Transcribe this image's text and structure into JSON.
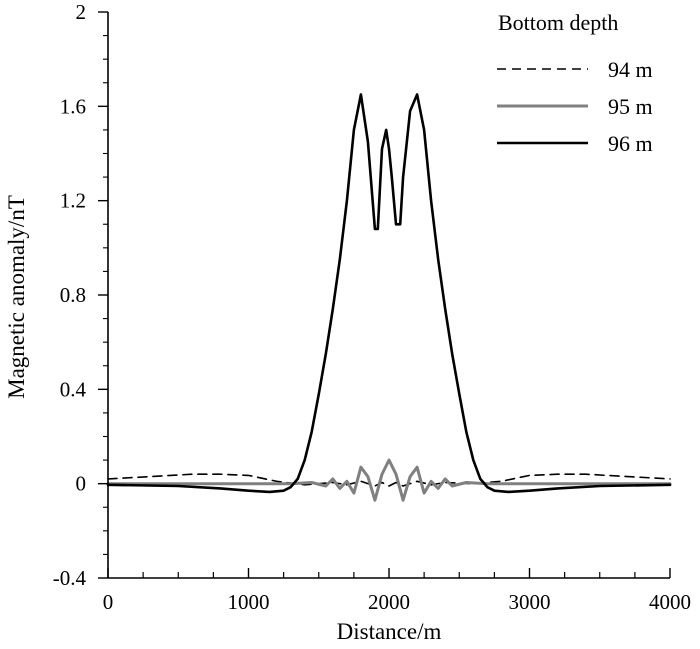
{
  "chart_data": {
    "type": "line",
    "xlabel": "Distance/m",
    "ylabel": "Magnetic anomaly/nT",
    "xlim": [
      0,
      4000
    ],
    "ylim": [
      -0.4,
      2
    ],
    "xticks": [
      "0",
      "1000",
      "2000",
      "3000",
      "4000"
    ],
    "yticks": [
      "-0.4",
      "0",
      "0.4",
      "0.8",
      "1.2",
      "1.6",
      "2"
    ],
    "grid": false,
    "legend": {
      "title": "Bottom depth",
      "placement": "top-right"
    },
    "series": [
      {
        "name": "94 m",
        "color": "#000000",
        "dash": "dashed",
        "x": [
          0,
          300,
          600,
          800,
          1000,
          1200,
          1400,
          1600,
          1700,
          1800,
          1900,
          1950,
          2000,
          2050,
          2100,
          2200,
          2300,
          2400,
          2600,
          2800,
          3000,
          3200,
          3400,
          3700,
          4000
        ],
        "y": [
          0.02,
          0.03,
          0.04,
          0.04,
          0.035,
          0.01,
          -0.005,
          0.005,
          -0.005,
          0.01,
          -0.01,
          0.005,
          -0.01,
          0.005,
          -0.01,
          0.01,
          -0.005,
          0.005,
          0.0,
          0.01,
          0.035,
          0.04,
          0.04,
          0.03,
          0.02
        ]
      },
      {
        "name": "95 m",
        "color": "#808080",
        "dash": "solid",
        "x": [
          0,
          500,
          1000,
          1300,
          1450,
          1550,
          1600,
          1650,
          1700,
          1750,
          1800,
          1850,
          1900,
          1950,
          2000,
          2050,
          2100,
          2150,
          2200,
          2250,
          2300,
          2350,
          2400,
          2450,
          2550,
          2700,
          3000,
          3500,
          4000
        ],
        "y": [
          0.0,
          0.0,
          0.0,
          0.0,
          0.005,
          -0.01,
          0.02,
          -0.02,
          0.01,
          -0.04,
          0.07,
          0.03,
          -0.07,
          0.04,
          0.1,
          0.04,
          -0.07,
          0.03,
          0.07,
          -0.04,
          0.01,
          -0.02,
          0.02,
          -0.01,
          0.005,
          0.0,
          0.0,
          0.0,
          0.0
        ]
      },
      {
        "name": "96 m",
        "color": "#000000",
        "dash": "solid",
        "x": [
          0,
          500,
          800,
          1000,
          1150,
          1250,
          1300,
          1350,
          1400,
          1450,
          1500,
          1550,
          1600,
          1650,
          1700,
          1750,
          1800,
          1850,
          1900,
          1920,
          1950,
          1980,
          2000,
          2020,
          2050,
          2080,
          2100,
          2150,
          2200,
          2250,
          2300,
          2350,
          2400,
          2450,
          2500,
          2550,
          2600,
          2650,
          2700,
          2750,
          2850,
          3000,
          3200,
          3500,
          4000
        ],
        "y": [
          -0.005,
          -0.01,
          -0.02,
          -0.03,
          -0.035,
          -0.03,
          -0.015,
          0.02,
          0.1,
          0.22,
          0.38,
          0.55,
          0.74,
          0.95,
          1.2,
          1.5,
          1.65,
          1.45,
          1.08,
          1.08,
          1.42,
          1.5,
          1.42,
          1.3,
          1.1,
          1.1,
          1.3,
          1.58,
          1.65,
          1.5,
          1.2,
          0.95,
          0.74,
          0.55,
          0.38,
          0.22,
          0.1,
          0.02,
          -0.015,
          -0.03,
          -0.035,
          -0.03,
          -0.02,
          -0.01,
          -0.005
        ]
      }
    ]
  }
}
